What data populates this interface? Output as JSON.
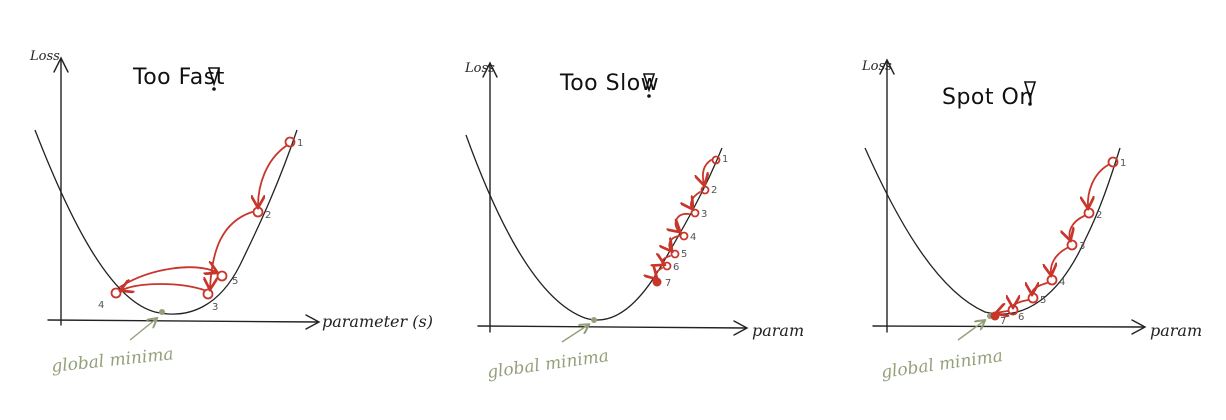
{
  "panels": [
    {
      "title": "Too Fast",
      "y_label": "Loss",
      "x_label": "parameter (s)",
      "minima_label": "global minima",
      "step_labels": [
        "1",
        "2",
        "3",
        "4",
        "5"
      ]
    },
    {
      "title": "Too Slow",
      "y_label": "Loss",
      "x_label": "param",
      "minima_label": "global minima",
      "step_labels": [
        "1",
        "2",
        "3",
        "4",
        "5",
        "6",
        "7"
      ]
    },
    {
      "title": "Spot On",
      "y_label": "Loss",
      "x_label": "param",
      "minima_label": "global minima",
      "step_labels": [
        "1",
        "2",
        "3",
        "4",
        "5",
        "6",
        "7"
      ]
    }
  ],
  "colors": {
    "steps": "#c8352a",
    "minima": "#93a07a",
    "ink": "#222222"
  }
}
